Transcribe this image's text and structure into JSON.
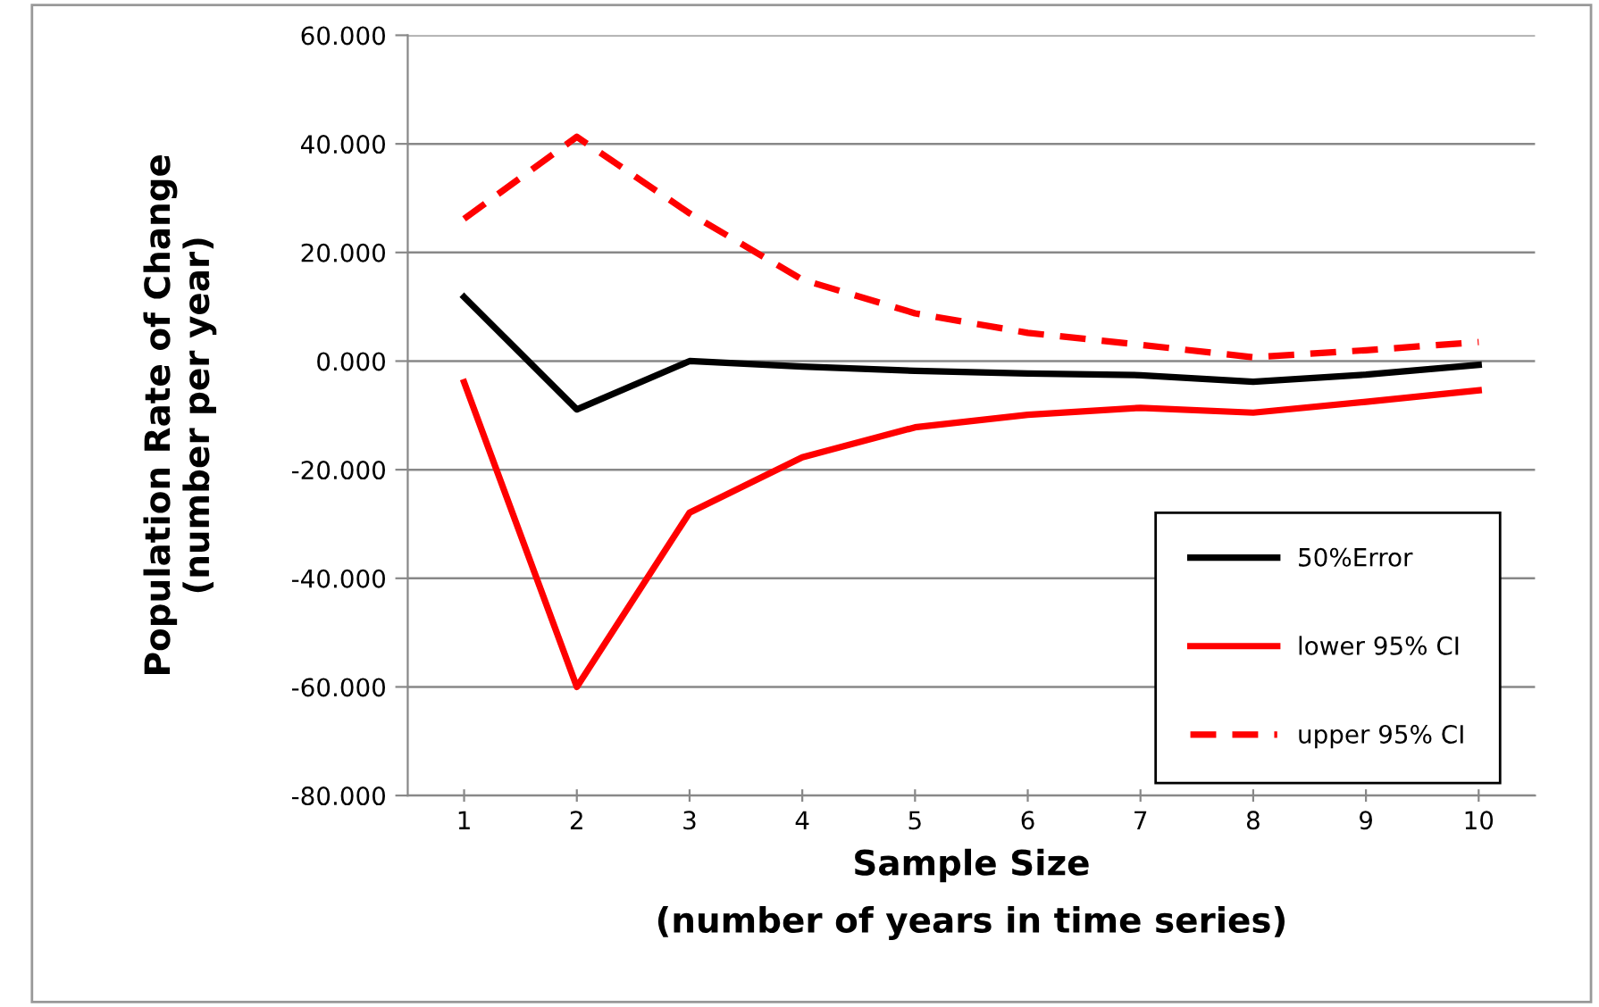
{
  "chart_data": {
    "type": "line",
    "xlabel": "Sample Size\n(number of years in time series)",
    "ylabel": "Population Rate of Change\n(number per year)",
    "categories": [
      "1",
      "2",
      "3",
      "4",
      "5",
      "6",
      "7",
      "8",
      "9",
      "10"
    ],
    "series": [
      {
        "name": "50%Error",
        "color": "#000000",
        "line_style": "solid",
        "values": [
          11.8,
          -8.9,
          0,
          -1,
          -1.8,
          -2.3,
          -2.6,
          -3.8,
          -2.5,
          -0.7
        ]
      },
      {
        "name": "lower 95% CI",
        "color": "#ff0000",
        "line_style": "solid",
        "values": [
          -3.9,
          -60,
          -27.9,
          -17.7,
          -12.2,
          -9.9,
          -8.6,
          -9.5,
          -7.5,
          -5.4
        ]
      },
      {
        "name": "upper 95% CI",
        "color": "#ff0000",
        "line_style": "dashed",
        "values": [
          26.2,
          41.3,
          27.2,
          15,
          8.8,
          5.2,
          3,
          0.7,
          2,
          3.5
        ]
      }
    ],
    "ylim": [
      -80,
      60
    ],
    "yticks": [
      {
        "value": -80,
        "label": "-80.000"
      },
      {
        "value": -60,
        "label": "-60.000"
      },
      {
        "value": -40,
        "label": "-40.000"
      },
      {
        "value": -20,
        "label": "-20.000"
      },
      {
        "value": 0,
        "label": "0.000"
      },
      {
        "value": 20,
        "label": "20.000"
      },
      {
        "value": 40,
        "label": "40.000"
      },
      {
        "value": 60,
        "label": "60.000"
      }
    ],
    "grid": "y",
    "legend": "bottom right",
    "marker": "none"
  }
}
